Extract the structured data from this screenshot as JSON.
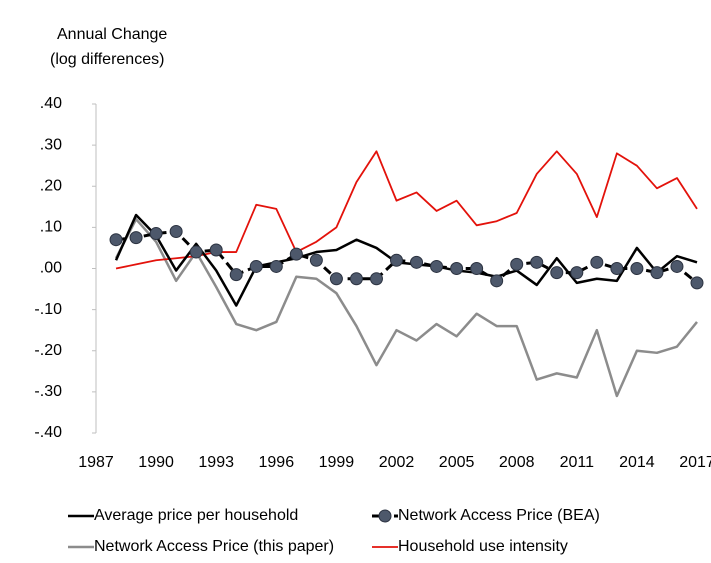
{
  "chart_data": {
    "type": "line",
    "ylabel": [
      "Annual Change",
      "(log differences)"
    ],
    "x": [
      1988,
      1989,
      1990,
      1991,
      1992,
      1993,
      1994,
      1995,
      1996,
      1997,
      1998,
      1999,
      2000,
      2001,
      2002,
      2003,
      2004,
      2005,
      2006,
      2007,
      2008,
      2009,
      2010,
      2011,
      2012,
      2013,
      2014,
      2015,
      2016,
      2017
    ],
    "xlim": [
      1987,
      2017
    ],
    "xticks": [
      1987,
      1990,
      1993,
      1996,
      1999,
      2002,
      2005,
      2008,
      2011,
      2014,
      2017
    ],
    "ylim": [
      -0.4,
      0.4
    ],
    "yticks": [
      {
        "value": 0.4,
        "label": ".40"
      },
      {
        "value": 0.3,
        "label": ".30"
      },
      {
        "value": 0.2,
        "label": ".20"
      },
      {
        "value": 0.1,
        "label": ".10"
      },
      {
        "value": 0,
        "label": ".00"
      },
      {
        "value": -0.1,
        "label": "-.10"
      },
      {
        "value": -0.2,
        "label": "-.20"
      },
      {
        "value": -0.3,
        "label": "-.30"
      },
      {
        "value": -0.4,
        "label": "-.40"
      }
    ],
    "grid": false,
    "legend": "bottom",
    "series": [
      {
        "name": "Average price per household",
        "color": "#000000",
        "values": [
          0.02,
          0.13,
          0.08,
          -0.005,
          0.06,
          -0.005,
          -0.09,
          0.005,
          0.015,
          0.025,
          0.04,
          0.045,
          0.07,
          0.05,
          0.015,
          0.01,
          0.005,
          -0.005,
          -0.01,
          -0.02,
          -0.005,
          -0.04,
          0.025,
          -0.035,
          -0.025,
          -0.03,
          0.05,
          -0.01,
          0.03,
          0.015
        ]
      },
      {
        "name": "Network Access Price (BEA)",
        "color": "#000000",
        "marker_color": "#4d586b",
        "values": [
          0.07,
          0.075,
          0.085,
          0.09,
          0.04,
          0.045,
          -0.015,
          0.005,
          0.005,
          0.035,
          0.02,
          -0.025,
          -0.025,
          -0.025,
          0.02,
          0.015,
          0.005,
          0,
          0,
          -0.03,
          0.01,
          0.015,
          -0.01,
          -0.01,
          0.015,
          0,
          0,
          -0.01,
          0.005,
          -0.035
        ]
      },
      {
        "name": "Network Access Price (this paper)",
        "color": "#8c8c8c",
        "values": [
          0.025,
          0.12,
          0.065,
          -0.03,
          0.04,
          -0.045,
          -0.135,
          -0.15,
          -0.13,
          -0.02,
          -0.025,
          -0.06,
          -0.14,
          -0.235,
          -0.15,
          -0.175,
          -0.135,
          -0.165,
          -0.11,
          -0.14,
          -0.14,
          -0.27,
          -0.255,
          -0.265,
          -0.15,
          -0.31,
          -0.2,
          -0.205,
          -0.19,
          -0.13
        ]
      },
      {
        "name": "Household use intensity",
        "color": "#e3120b",
        "values": [
          0,
          0.01,
          0.02,
          0.025,
          0.03,
          0.04,
          0.04,
          0.155,
          0.145,
          0.04,
          0.065,
          0.1,
          0.21,
          0.285,
          0.165,
          0.185,
          0.14,
          0.165,
          0.105,
          0.115,
          0.135,
          0.23,
          0.285,
          0.23,
          0.125,
          0.28,
          0.25,
          0.195,
          0.22,
          0.145
        ]
      }
    ]
  }
}
